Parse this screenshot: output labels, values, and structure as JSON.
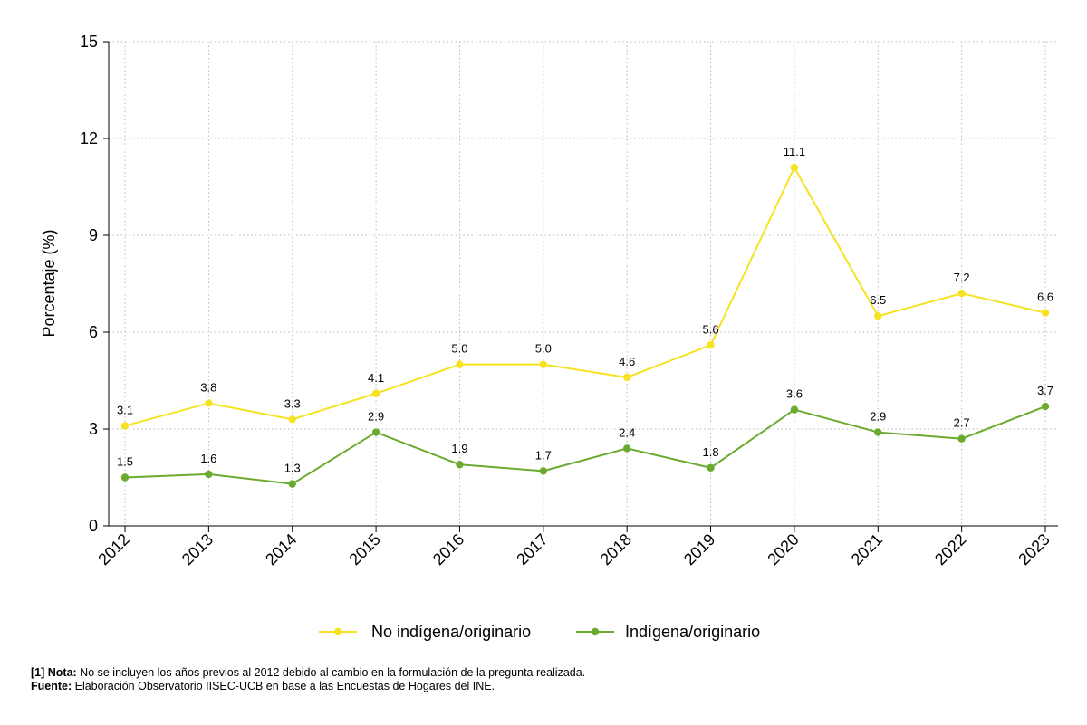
{
  "chart_data": {
    "type": "line",
    "x": [
      "2012",
      "2013",
      "2014",
      "2015",
      "2016",
      "2017",
      "2018",
      "2019",
      "2020",
      "2021",
      "2022",
      "2023"
    ],
    "series": [
      {
        "name": "No indígena/originario",
        "color": "#f5e321",
        "values": [
          3.1,
          3.8,
          3.3,
          4.1,
          5.0,
          5.0,
          4.6,
          5.6,
          11.1,
          6.5,
          7.2,
          6.6
        ],
        "labels": [
          "3.1",
          "3.8",
          "3.3",
          "4.1",
          "5.0",
          "5.0",
          "4.6",
          "5.6",
          "11.1",
          "6.5",
          "7.2",
          "6.6"
        ]
      },
      {
        "name": "Indígena/originario",
        "color": "#6aaa2f",
        "values": [
          1.5,
          1.6,
          1.3,
          2.9,
          1.9,
          1.7,
          2.4,
          1.8,
          3.6,
          2.9,
          2.7,
          3.7
        ],
        "labels": [
          "1.5",
          "1.6",
          "1.3",
          "2.9",
          "1.9",
          "1.7",
          "2.4",
          "1.8",
          "3.6",
          "2.9",
          "2.7",
          "3.7"
        ]
      }
    ],
    "ylabel": "Porcentaje (%)",
    "ylim": [
      0,
      15
    ],
    "yticks": [
      "0",
      "3",
      "6",
      "9",
      "12",
      "15"
    ],
    "grid": true,
    "legend_position": "bottom"
  },
  "notes": {
    "nota_label": "[1] Nota:",
    "nota_text": " No se incluyen los años previos al 2012 debido al cambio en la formulación de la pregunta realizada.",
    "fuente_label": "Fuente:",
    "fuente_text": " Elaboración Observatorio IISEC-UCB en base a las Encuestas de Hogares del INE."
  }
}
